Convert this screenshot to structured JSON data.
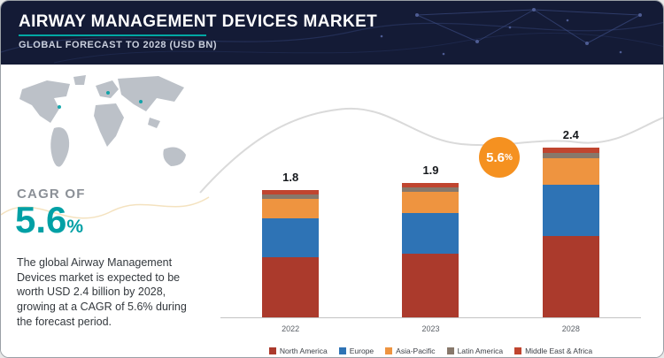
{
  "header": {
    "title": "AIRWAY MANAGEMENT DEVICES MARKET",
    "subtitle": "GLOBAL FORECAST TO 2028 (USD BN)"
  },
  "left_panel": {
    "cagr_label": "CAGR OF",
    "cagr_value": "5.6",
    "cagr_percent": "%",
    "description": "The global Airway Management Devices market is expected to be worth USD 2.4 billion by 2028, growing at a CAGR of 5.6% during the forecast period."
  },
  "badge": {
    "value": "5.6",
    "percent": "%",
    "color": "#f59120"
  },
  "colors": {
    "accent_teal": "#00a0a5",
    "header_navy": "#141b36"
  },
  "chart_data": {
    "type": "bar",
    "stacked": true,
    "title": "Airway Management Devices Market, Global Forecast to 2028 (USD BN)",
    "xlabel": "",
    "ylabel": "",
    "categories": [
      "2022",
      "2023",
      "2028"
    ],
    "total_labels": [
      "1.8",
      "1.9",
      "2.4"
    ],
    "totals": [
      1.8,
      1.9,
      2.4
    ],
    "series": [
      {
        "name": "North America",
        "color": "#ab3a2c",
        "values": [
          0.85,
          0.9,
          1.15
        ]
      },
      {
        "name": "Europe",
        "color": "#2e73b5",
        "values": [
          0.55,
          0.58,
          0.72
        ]
      },
      {
        "name": "Asia-Pacific",
        "color": "#ee9440",
        "values": [
          0.28,
          0.3,
          0.38
        ]
      },
      {
        "name": "Latin America",
        "color": "#87786b",
        "values": [
          0.06,
          0.06,
          0.08
        ]
      },
      {
        "name": "Middle East & Africa",
        "color": "#c0452f",
        "values": [
          0.06,
          0.06,
          0.07
        ]
      }
    ],
    "ylim": [
      0,
      2.6
    ],
    "grid": false,
    "legend_position": "bottom",
    "annotations": [
      "CAGR badge 5.6% near 2028 bar"
    ]
  }
}
